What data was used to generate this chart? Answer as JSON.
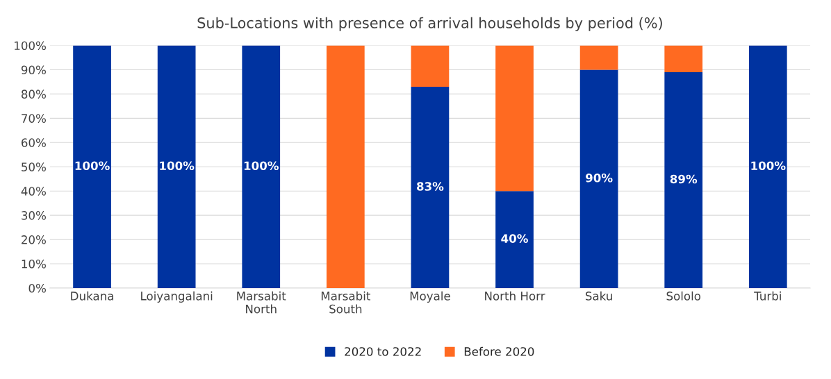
{
  "chart_data": {
    "type": "bar",
    "title": "Sub-Locations with presence of arrival households by period (%)",
    "categories": [
      "Dukana",
      "Loiyangalani",
      "Marsabit\nNorth",
      "Marsabit\nSouth",
      "Moyale",
      "North Horr",
      "Saku",
      "Sololo",
      "Turbi"
    ],
    "stacked": true,
    "series": [
      {
        "name": "2020 to 2022",
        "color": "#0033a0",
        "values": [
          100,
          100,
          100,
          0,
          83,
          40,
          90,
          89,
          100
        ],
        "value_labels": [
          "100%",
          "100%",
          "100%",
          null,
          "83%",
          "40%",
          "90%",
          "89%",
          "100%"
        ]
      },
      {
        "name": "Before 2020",
        "color": "#ff6a21",
        "values": [
          0,
          0,
          0,
          100,
          17,
          60,
          10,
          11,
          0
        ]
      }
    ],
    "ylim": [
      0,
      100
    ],
    "yticks": [
      {
        "value": 0,
        "label": "0%"
      },
      {
        "value": 10,
        "label": "10%"
      },
      {
        "value": 20,
        "label": "20%"
      },
      {
        "value": 30,
        "label": "30%"
      },
      {
        "value": 40,
        "label": "40%"
      },
      {
        "value": 50,
        "label": "50%"
      },
      {
        "value": 60,
        "label": "60%"
      },
      {
        "value": 70,
        "label": "70%"
      },
      {
        "value": 80,
        "label": "80%"
      },
      {
        "value": 90,
        "label": "90%"
      },
      {
        "value": 100,
        "label": "100%"
      }
    ],
    "grid": "y",
    "legend": "bottom"
  }
}
